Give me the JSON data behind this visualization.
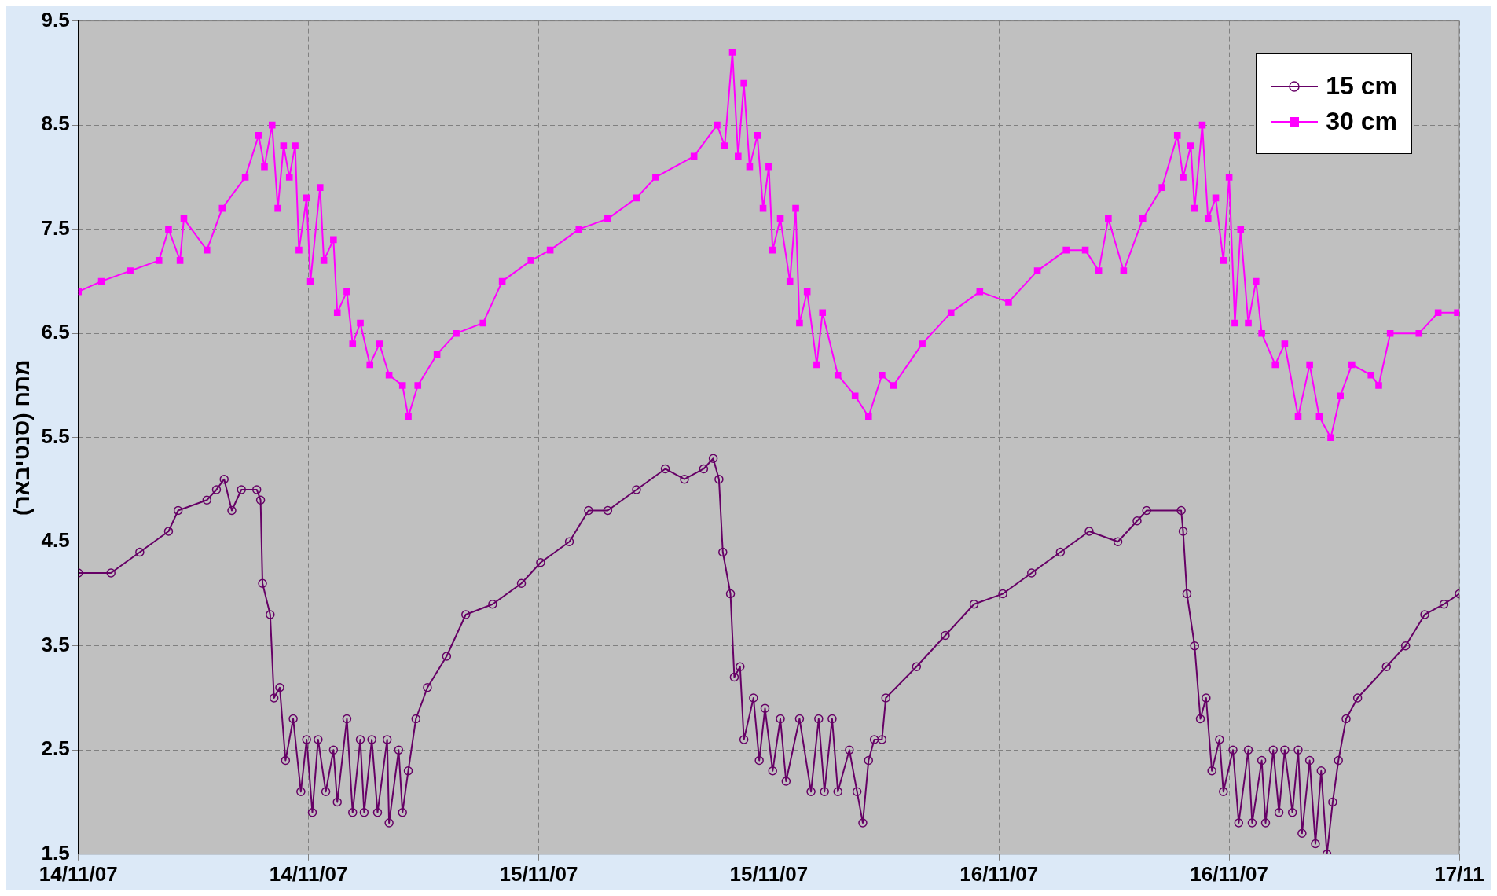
{
  "chart_data": {
    "type": "line",
    "ylabel": "מתח (סנטיבאר)",
    "xlim": [
      "--11-14T00:00",
      "--11-17T00:00"
    ],
    "xticks": [
      {
        "value": "--11-14T00:00",
        "label": "14/11/07"
      },
      {
        "value": "--11-14T12:00",
        "label": "14/11/07"
      },
      {
        "value": "--11-15T00:00",
        "label": "15/11/07"
      },
      {
        "value": "--11-15T12:00",
        "label": "15/11/07"
      },
      {
        "value": "--11-16T00:00",
        "label": "16/11/07"
      },
      {
        "value": "--11-16T12:00",
        "label": "16/11/07"
      },
      {
        "value": "--11-17T00:00",
        "label": "17/11"
      }
    ],
    "ylim": [
      1.5,
      9.5
    ],
    "yticks": [
      1.5,
      2.5,
      3.5,
      4.5,
      5.5,
      6.5,
      7.5,
      8.5,
      9.5
    ],
    "grid": true,
    "legend": "top right",
    "line_style": "solid",
    "series": [
      {
        "name": "15 cm",
        "color": "#660066",
        "marker": "circle",
        "x": [
          "--11-14T00:00",
          "--11-14T01:42",
          "--11-14T03:12",
          "--11-14T04:42",
          "--11-14T05:12",
          "--11-14T06:42",
          "--11-14T07:12",
          "--11-14T07:36",
          "--11-14T08:00",
          "--11-14T08:30",
          "--11-14T09:18",
          "--11-14T09:30",
          "--11-14T09:36",
          "--11-14T10:00",
          "--11-14T10:12",
          "--11-14T10:30",
          "--11-14T10:48",
          "--11-14T11:12",
          "--11-14T11:36",
          "--11-14T11:54",
          "--11-14T12:12",
          "--11-14T12:30",
          "--11-14T12:54",
          "--11-14T13:18",
          "--11-14T13:30",
          "--11-14T14:00",
          "--11-14T14:18",
          "--11-14T14:42",
          "--11-14T14:54",
          "--11-14T15:18",
          "--11-14T15:36",
          "--11-14T16:06",
          "--11-14T16:12",
          "--11-14T16:42",
          "--11-14T16:54",
          "--11-14T17:12",
          "--11-14T17:36",
          "--11-14T18:12",
          "--11-14T19:12",
          "--11-14T20:12",
          "--11-14T21:36",
          "--11-14T23:06",
          "--11-15T00:06",
          "--11-15T01:36",
          "--11-15T02:36",
          "--11-15T03:36",
          "--11-15T05:06",
          "--11-15T06:36",
          "--11-15T07:36",
          "--11-15T08:36",
          "--11-15T09:06",
          "--11-15T09:24",
          "--11-15T09:36",
          "--11-15T10:00",
          "--11-15T10:12",
          "--11-15T10:30",
          "--11-15T10:42",
          "--11-15T11:12",
          "--11-15T11:30",
          "--11-15T11:48",
          "--11-15T12:12",
          "--11-15T12:36",
          "--11-15T12:54",
          "--11-15T13:36",
          "--11-15T14:12",
          "--11-15T14:36",
          "--11-15T14:54",
          "--11-15T15:18",
          "--11-15T15:36",
          "--11-15T16:12",
          "--11-15T16:36",
          "--11-15T16:54",
          "--11-15T17:12",
          "--11-15T17:30",
          "--11-15T17:54",
          "--11-15T18:06",
          "--11-15T19:42",
          "--11-15T21:12",
          "--11-15T22:42",
          "--11-16T00:12",
          "--11-16T01:42",
          "--11-16T03:12",
          "--11-16T04:42",
          "--11-16T06:12",
          "--11-16T07:12",
          "--11-16T07:42",
          "--11-16T09:30",
          "--11-16T09:36",
          "--11-16T09:48",
          "--11-16T10:12",
          "--11-16T10:30",
          "--11-16T10:48",
          "--11-16T11:06",
          "--11-16T11:30",
          "--11-16T11:42",
          "--11-16T12:12",
          "--11-16T12:30",
          "--11-16T13:00",
          "--11-16T13:12",
          "--11-16T13:42",
          "--11-16T13:54",
          "--11-16T14:18",
          "--11-16T14:36",
          "--11-16T14:54",
          "--11-16T15:18",
          "--11-16T15:36",
          "--11-16T15:48",
          "--11-16T16:12",
          "--11-16T16:30",
          "--11-16T16:48",
          "--11-16T17:06",
          "--11-16T17:24",
          "--11-16T17:42",
          "--11-16T18:06",
          "--11-16T18:42",
          "--11-16T20:12",
          "--11-16T21:12",
          "--11-16T22:12",
          "--11-16T23:12",
          "--11-17T00:00"
        ],
        "values": [
          4.2,
          4.2,
          4.4,
          4.6,
          4.8,
          4.9,
          5.0,
          5.1,
          4.8,
          5.0,
          5.0,
          4.9,
          4.1,
          3.8,
          3.0,
          3.1,
          2.4,
          2.8,
          2.1,
          2.6,
          1.9,
          2.6,
          2.1,
          2.5,
          2.0,
          2.8,
          1.9,
          2.6,
          1.9,
          2.6,
          1.9,
          2.6,
          1.8,
          2.5,
          1.9,
          2.3,
          2.8,
          3.1,
          3.4,
          3.8,
          3.9,
          4.1,
          4.3,
          4.5,
          4.8,
          4.8,
          5.0,
          5.2,
          5.1,
          5.2,
          5.3,
          5.1,
          4.4,
          4.0,
          3.2,
          3.3,
          2.6,
          3.0,
          2.4,
          2.9,
          2.3,
          2.8,
          2.2,
          2.8,
          2.1,
          2.8,
          2.1,
          2.8,
          2.1,
          2.5,
          2.1,
          1.8,
          2.4,
          2.6,
          2.6,
          3.0,
          3.3,
          3.6,
          3.9,
          4.0,
          4.2,
          4.4,
          4.6,
          4.5,
          4.7,
          4.8,
          4.8,
          4.6,
          4.0,
          3.5,
          2.8,
          3.0,
          2.3,
          2.6,
          2.1,
          2.5,
          1.8,
          2.5,
          1.8,
          2.4,
          1.8,
          2.5,
          1.9,
          2.5,
          1.9,
          2.5,
          1.7,
          2.4,
          1.6,
          2.3,
          1.5,
          2.0,
          2.4,
          2.8,
          3.0,
          3.3,
          3.5,
          3.8,
          3.9,
          4.0
        ]
      },
      {
        "name": "30 cm",
        "color": "#ff00ff",
        "marker": "square",
        "x": [
          "--11-14T00:00",
          "--11-14T01:12",
          "--11-14T02:42",
          "--11-14T04:12",
          "--11-14T04:42",
          "--11-14T05:18",
          "--11-14T05:30",
          "--11-14T06:42",
          "--11-14T07:30",
          "--11-14T08:42",
          "--11-14T09:24",
          "--11-14T09:42",
          "--11-14T10:06",
          "--11-14T10:24",
          "--11-14T10:42",
          "--11-14T11:00",
          "--11-14T11:18",
          "--11-14T11:30",
          "--11-14T11:54",
          "--11-14T12:06",
          "--11-14T12:36",
          "--11-14T12:48",
          "--11-14T13:18",
          "--11-14T13:30",
          "--11-14T14:00",
          "--11-14T14:18",
          "--11-14T14:42",
          "--11-14T15:12",
          "--11-14T15:42",
          "--11-14T16:12",
          "--11-14T16:54",
          "--11-14T17:12",
          "--11-14T17:42",
          "--11-14T18:42",
          "--11-14T19:42",
          "--11-14T21:06",
          "--11-14T22:06",
          "--11-14T23:36",
          "--11-15T00:36",
          "--11-15T02:06",
          "--11-15T03:36",
          "--11-15T05:06",
          "--11-15T06:06",
          "--11-15T08:06",
          "--11-15T09:18",
          "--11-15T09:42",
          "--11-15T10:06",
          "--11-15T10:24",
          "--11-15T10:42",
          "--11-15T11:00",
          "--11-15T11:24",
          "--11-15T11:42",
          "--11-15T12:00",
          "--11-15T12:12",
          "--11-15T12:36",
          "--11-15T13:06",
          "--11-15T13:24",
          "--11-15T13:36",
          "--11-15T14:00",
          "--11-15T14:30",
          "--11-15T14:48",
          "--11-15T15:36",
          "--11-15T16:30",
          "--11-15T17:12",
          "--11-15T17:54",
          "--11-15T18:30",
          "--11-15T20:00",
          "--11-15T21:30",
          "--11-15T23:00",
          "--11-16T00:30",
          "--11-16T02:00",
          "--11-16T03:30",
          "--11-16T04:30",
          "--11-16T05:12",
          "--11-16T05:42",
          "--11-16T06:30",
          "--11-16T07:30",
          "--11-16T08:30",
          "--11-16T09:18",
          "--11-16T09:36",
          "--11-16T10:00",
          "--11-16T10:12",
          "--11-16T10:36",
          "--11-16T10:54",
          "--11-16T11:18",
          "--11-16T11:42",
          "--11-16T12:00",
          "--11-16T12:18",
          "--11-16T12:36",
          "--11-16T13:00",
          "--11-16T13:24",
          "--11-16T13:42",
          "--11-16T14:24",
          "--11-16T14:54",
          "--11-16T15:36",
          "--11-16T16:12",
          "--11-16T16:42",
          "--11-16T17:18",
          "--11-16T17:48",
          "--11-16T18:24",
          "--11-16T19:24",
          "--11-16T19:48",
          "--11-16T20:24",
          "--11-16T21:54",
          "--11-16T22:54",
          "--11-16T23:54"
        ],
        "values": [
          6.9,
          7.0,
          7.1,
          7.2,
          7.5,
          7.2,
          7.6,
          7.3,
          7.7,
          8.0,
          8.4,
          8.1,
          8.5,
          7.7,
          8.3,
          8.0,
          8.3,
          7.3,
          7.8,
          7.0,
          7.9,
          7.2,
          7.4,
          6.7,
          6.9,
          6.4,
          6.6,
          6.2,
          6.4,
          6.1,
          6.0,
          5.7,
          6.0,
          6.3,
          6.5,
          6.6,
          7.0,
          7.2,
          7.3,
          7.5,
          7.6,
          7.8,
          8.0,
          8.2,
          8.5,
          8.3,
          9.2,
          8.2,
          8.9,
          8.1,
          8.4,
          7.7,
          8.1,
          7.3,
          7.6,
          7.0,
          7.7,
          6.6,
          6.9,
          6.2,
          6.7,
          6.1,
          5.9,
          5.7,
          6.1,
          6.0,
          6.4,
          6.7,
          6.9,
          6.8,
          7.1,
          7.3,
          7.3,
          7.1,
          7.6,
          7.1,
          7.6,
          7.9,
          8.4,
          8.0,
          8.3,
          7.7,
          8.5,
          7.6,
          7.8,
          7.2,
          8.0,
          6.6,
          7.5,
          6.6,
          7.0,
          6.5,
          6.2,
          6.4,
          5.7,
          6.2,
          5.7,
          5.5,
          5.9,
          6.2,
          6.1,
          6.0,
          6.5,
          6.5,
          6.7,
          6.7
        ]
      }
    ]
  }
}
